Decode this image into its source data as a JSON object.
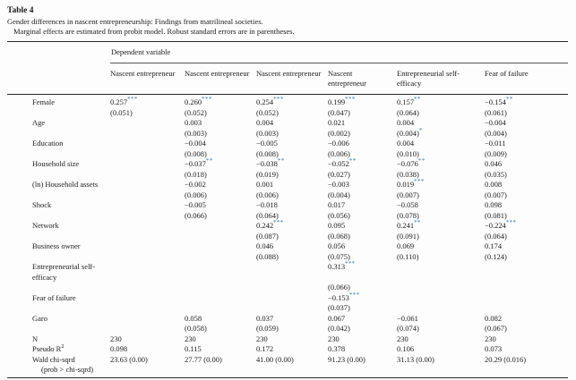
{
  "title": "Table 4",
  "caption_line1": "Gender differences in nascent entrepreneurship: Findings from matrilineal societies.",
  "caption_line2": "Marginal effects are estimated from probit model. Robust standard errors are in parentheses.",
  "colors": {
    "star": "#2e74b5",
    "text": "#1a1a1a"
  },
  "table": {
    "group_header": "Dependent variable",
    "columns": [
      "Nascent entrepreneur",
      "Nascent entrepreneur",
      "Nascent entrepreneur",
      "Nascent entrepreneur",
      "Entrepreneurial self-efficacy",
      "Fear of failure"
    ],
    "rows": [
      {
        "label": "Female",
        "cells": [
          {
            "v": "0.257",
            "s": "***",
            "se": "(0.051)"
          },
          {
            "v": "0.260",
            "s": "***",
            "se": "(0.052)"
          },
          {
            "v": "0.254",
            "s": "***",
            "se": "(0.052)"
          },
          {
            "v": "0.199",
            "s": "***",
            "se": "(0.047)"
          },
          {
            "v": "0.157",
            "s": "**",
            "se": "(0.064)"
          },
          {
            "v": "−0.154",
            "s": "**",
            "se": "(0.061)"
          }
        ]
      },
      {
        "label": "Age",
        "cells": [
          null,
          {
            "v": "0.003",
            "se": "(0.003)"
          },
          {
            "v": "0.004",
            "se": "(0.003)"
          },
          {
            "v": "0.021",
            "se": "(0.002)"
          },
          {
            "v": "0.004",
            "se": "(0.004)",
            "ses": "*"
          },
          {
            "v": "−0.004",
            "se": "(0.004)"
          }
        ]
      },
      {
        "label": "Education",
        "cells": [
          null,
          {
            "v": "−0.004",
            "se": "(0.008)"
          },
          {
            "v": "−0.005",
            "se": "(0.008)"
          },
          {
            "v": "−0.006",
            "se": "(0.006)"
          },
          {
            "v": "0.004",
            "se": "(0.010)"
          },
          {
            "v": "−0.011",
            "se": "(0.009)"
          }
        ]
      },
      {
        "label": "Household size",
        "cells": [
          null,
          {
            "v": "−0.037",
            "s": "**",
            "se": "(0.018)"
          },
          {
            "v": "−0.038",
            "s": "**",
            "se": "(0.019)"
          },
          {
            "v": "−0.052",
            "s": "**",
            "se": "(0.027)"
          },
          {
            "v": "−0.076",
            "s": "**",
            "se": "(0.038)"
          },
          {
            "v": "0.046",
            "se": "(0.035)"
          }
        ]
      },
      {
        "label": "(ln) Household assets",
        "cells": [
          null,
          {
            "v": "−0.002",
            "se": "(0.006)"
          },
          {
            "v": "0.001",
            "se": "(0.006)"
          },
          {
            "v": "−0.003",
            "se": "(0.004)"
          },
          {
            "v": "0.019",
            "s": "***",
            "se": "(0.007)"
          },
          {
            "v": "0.008",
            "se": "(0.007)"
          }
        ]
      },
      {
        "label": "Shock",
        "cells": [
          null,
          {
            "v": "−0.005",
            "se": "(0.066)"
          },
          {
            "v": "−0.018",
            "se": "(0.064)"
          },
          {
            "v": "0.017",
            "se": "(0.056)"
          },
          {
            "v": "−0.058",
            "se": "(0.078)"
          },
          {
            "v": "0.098",
            "se": "(0.081)"
          }
        ]
      },
      {
        "label": "Network",
        "cells": [
          null,
          null,
          {
            "v": "0.242",
            "s": "***",
            "se": "(0.087)"
          },
          {
            "v": "0.095",
            "se": "(0.068)"
          },
          {
            "v": "0.241",
            "s": "**",
            "se": "(0.091)"
          },
          {
            "v": "−0.224",
            "s": "***",
            "se": "(0.064)"
          }
        ]
      },
      {
        "label": "Business owner",
        "cells": [
          null,
          null,
          {
            "v": "0.046",
            "se": "(0.088)"
          },
          {
            "v": "0.056",
            "se": "(0.075)"
          },
          {
            "v": "0.069",
            "se": "(0.110)"
          },
          {
            "v": "0.174",
            "se": "(0.124)"
          }
        ]
      },
      {
        "label": "Entrepreneurial self-efficacy",
        "cells": [
          null,
          null,
          null,
          {
            "v": "0.313",
            "s": "***",
            "se": "(0.066)"
          },
          null,
          null
        ]
      },
      {
        "label": "Fear of failure",
        "cells": [
          null,
          null,
          null,
          {
            "v": "−0.153",
            "s": "***",
            "se": "(0.037)"
          },
          null,
          null
        ]
      },
      {
        "label": "Garo",
        "cells": [
          null,
          {
            "v": "0.058",
            "se": "(0.058)"
          },
          {
            "v": "0.037",
            "se": "(0.059)"
          },
          {
            "v": "0.067",
            "se": "(0.042)"
          },
          {
            "v": "−0.061",
            "se": "(0.074)"
          },
          {
            "v": "0.082",
            "se": "(0.067)"
          }
        ]
      }
    ],
    "stats": [
      {
        "label": "N",
        "values": [
          "230",
          "230",
          "230",
          "230",
          "230",
          "230"
        ]
      },
      {
        "label": "Pseudo R",
        "label_sup": "2",
        "values": [
          "0.098",
          "0.115",
          "0.172",
          "0.378",
          "0.106",
          "0.073"
        ]
      },
      {
        "label": "Wald chi-sqrd",
        "sublabel": "(prob > chi-sqrd)",
        "values": [
          "23.63 (0.00)",
          "27.77 (0.00)",
          "41.00 (0.00)",
          "91.23 (0.00)",
          "31.13 (0.00)",
          "20.29 (0.016)"
        ]
      }
    ]
  }
}
